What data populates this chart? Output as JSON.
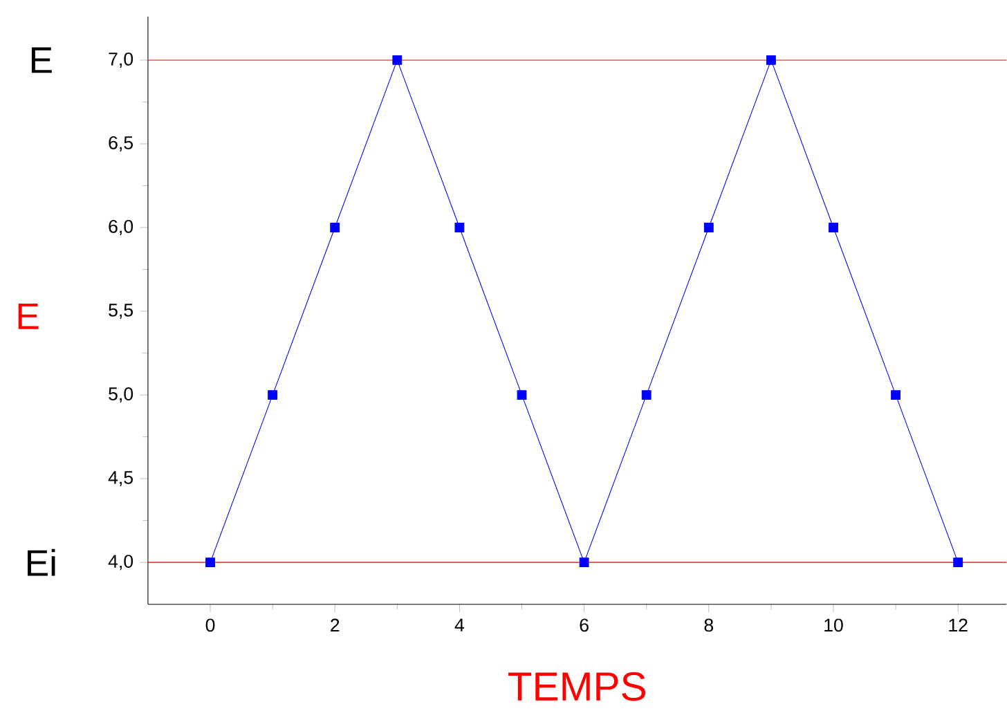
{
  "chart_data": {
    "type": "line",
    "xlabel": "TEMPS",
    "ylabel": "E",
    "x": [
      0,
      1,
      2,
      3,
      4,
      5,
      6,
      7,
      8,
      9,
      10,
      11,
      12
    ],
    "series": [
      {
        "color": "#0000ff",
        "values": [
          4,
          5,
          6,
          7,
          6,
          5,
          4,
          5,
          6,
          7,
          6,
          5,
          4
        ]
      }
    ],
    "marker": "square",
    "line_style": "solid",
    "grid": false,
    "xlim": [
      -1,
      12.78
    ],
    "xticks": [
      0,
      2,
      4,
      6,
      8,
      10,
      12
    ],
    "ylim": [
      3.75,
      7.26
    ],
    "yticks": [
      {
        "value": 4,
        "label": "4,0"
      },
      {
        "value": 4.5,
        "label": "4,5"
      },
      {
        "value": 5,
        "label": "5,0"
      },
      {
        "value": 5.5,
        "label": "5,5"
      },
      {
        "value": 6,
        "label": "6,0"
      },
      {
        "value": 6.5,
        "label": "6,5"
      },
      {
        "value": 7,
        "label": "7,0"
      }
    ],
    "ref_lines": [
      {
        "axis": "y",
        "value": 7,
        "label": "E",
        "color": "#e00000"
      },
      {
        "axis": "y",
        "value": 4,
        "label": "Ei",
        "color": "#e00000"
      }
    ]
  }
}
